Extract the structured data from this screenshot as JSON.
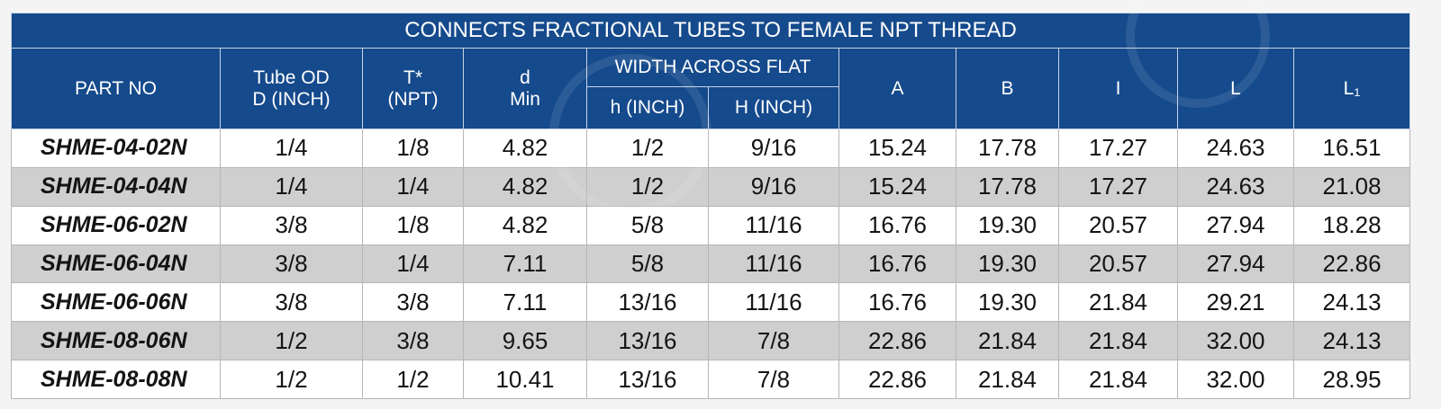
{
  "table": {
    "title": "CONNECTS FRACTIONAL TUBES TO FEMALE NPT THREAD",
    "headers": {
      "part_no": "PART NO",
      "tube_od": [
        "Tube OD",
        "D (INCH)"
      ],
      "thread": [
        "T*",
        "(NPT)"
      ],
      "d_min": [
        "d",
        "Min"
      ],
      "width_across_flat": "WIDTH ACROSS FLAT",
      "h_inch": "h (INCH)",
      "H_inch": "H (INCH)",
      "A": "A",
      "B": "B",
      "I": "I",
      "L": "L",
      "L1": "L₁"
    },
    "rows": [
      [
        "SHME-04-02N",
        "1/4",
        "1/8",
        "4.82",
        "1/2",
        "9/16",
        "15.24",
        "17.78",
        "17.27",
        "24.63",
        "16.51"
      ],
      [
        "SHME-04-04N",
        "1/4",
        "1/4",
        "4.82",
        "1/2",
        "9/16",
        "15.24",
        "17.78",
        "17.27",
        "24.63",
        "21.08"
      ],
      [
        "SHME-06-02N",
        "3/8",
        "1/8",
        "4.82",
        "5/8",
        "11/16",
        "16.76",
        "19.30",
        "20.57",
        "27.94",
        "18.28"
      ],
      [
        "SHME-06-04N",
        "3/8",
        "1/4",
        "7.11",
        "5/8",
        "11/16",
        "16.76",
        "19.30",
        "20.57",
        "27.94",
        "22.86"
      ],
      [
        "SHME-06-06N",
        "3/8",
        "3/8",
        "7.11",
        "13/16",
        "11/16",
        "16.76",
        "19.30",
        "21.84",
        "29.21",
        "24.13"
      ],
      [
        "SHME-08-06N",
        "1/2",
        "3/8",
        "9.65",
        "13/16",
        "7/8",
        "22.86",
        "21.84",
        "21.84",
        "32.00",
        "24.13"
      ],
      [
        "SHME-08-08N",
        "1/2",
        "1/2",
        "10.41",
        "13/16",
        "7/8",
        "22.86",
        "21.84",
        "21.84",
        "32.00",
        "28.95"
      ]
    ]
  },
  "colors": {
    "header_bg": "#154a8c",
    "header_text": "#ffffff",
    "row_light": "#ffffff",
    "row_dark": "#cfcfcf"
  }
}
